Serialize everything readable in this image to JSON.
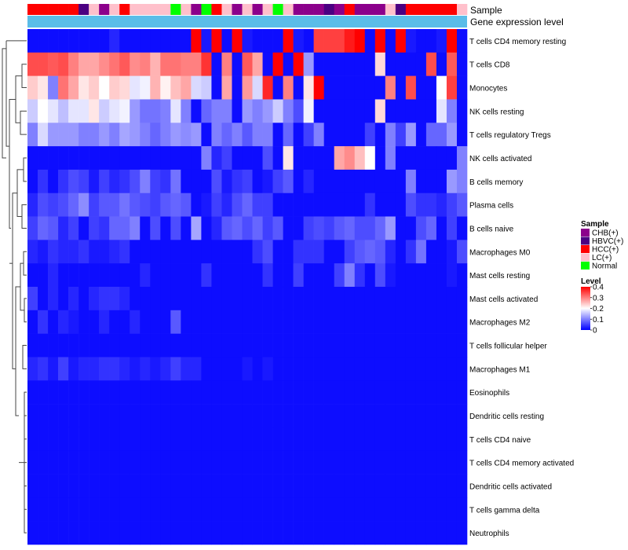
{
  "chart_data": {
    "type": "heatmap",
    "title": "",
    "annotation_labels": [
      "Sample",
      "Gene expression level"
    ],
    "sample_groups": [
      "HCC(+)",
      "HCC(+)",
      "HCC(+)",
      "HCC(+)",
      "HCC(+)",
      "HBVC(+)",
      "LC(+)",
      "CHB(+)",
      "LC(+)",
      "HCC(+)",
      "LC(+)",
      "LC(+)",
      "LC(+)",
      "LC(+)",
      "Normal",
      "LC(+)",
      "CHB(+)",
      "Normal",
      "HCC(+)",
      "LC(+)",
      "CHB(+)",
      "LC(+)",
      "CHB(+)",
      "LC(+)",
      "Normal",
      "LC(+)",
      "CHB(+)",
      "CHB(+)",
      "CHB(+)",
      "HBVC(+)",
      "CHB(+)",
      "HCC(+)",
      "CHB(+)",
      "CHB(+)",
      "CHB(+)",
      "LC(+)",
      "HBVC(+)",
      "HCC(+)",
      "HCC(+)",
      "HCC(+)",
      "HCC(+)",
      "HCC(+)",
      "LC(+)"
    ],
    "rows": [
      "T cells CD4 memory resting",
      "T cells CD8",
      "Monocytes",
      "NK cells resting",
      "T cells regulatory  Tregs",
      "NK cells activated",
      "B cells memory",
      "Plasma cells",
      "B cells naive",
      "Macrophages M0",
      "Mast cells resting",
      "Mast cells activated",
      "Macrophages M2",
      "T cells follicular helper",
      "Macrophages M1",
      "Eosinophils",
      "Dendritic cells resting",
      "T cells CD4 naive",
      "T cells CD4 memory activated",
      "Dendritic cells activated",
      "T cells gamma delta",
      "Neutrophils"
    ],
    "values": [
      [
        0.01,
        0.01,
        0.01,
        0.01,
        0.01,
        0.01,
        0.01,
        0.01,
        0.03,
        0.01,
        0.01,
        0.01,
        0.01,
        0.01,
        0.01,
        0.01,
        0.4,
        0.02,
        0.4,
        0.01,
        0.4,
        0.02,
        0.01,
        0.01,
        0.01,
        0.4,
        0.02,
        0.01,
        0.35,
        0.35,
        0.35,
        0.38,
        0.4,
        0.01,
        0.4,
        0.01,
        0.4,
        0.02,
        0.01,
        0.01,
        0.02,
        0.4,
        0.01
      ],
      [
        0.34,
        0.34,
        0.33,
        0.34,
        0.3,
        0.27,
        0.27,
        0.29,
        0.31,
        0.33,
        0.29,
        0.3,
        0.26,
        0.31,
        0.31,
        0.3,
        0.3,
        0.36,
        0.01,
        0.3,
        0.01,
        0.33,
        0.27,
        0.01,
        0.4,
        0.01,
        0.4,
        0.12,
        0.01,
        0.01,
        0.01,
        0.01,
        0.01,
        0.01,
        0.23,
        0.01,
        0.01,
        0.01,
        0.01,
        0.34,
        0.01,
        0.33,
        0.01
      ],
      [
        0.24,
        0.22,
        0.1,
        0.31,
        0.27,
        0.22,
        0.24,
        0.2,
        0.24,
        0.23,
        0.18,
        0.19,
        0.26,
        0.21,
        0.25,
        0.27,
        0.17,
        0.16,
        0.01,
        0.27,
        0.01,
        0.28,
        0.17,
        0.37,
        0.01,
        0.3,
        0.01,
        0.22,
        0.4,
        0.01,
        0.01,
        0.01,
        0.01,
        0.01,
        0.01,
        0.3,
        0.01,
        0.34,
        0.01,
        0.01,
        0.2,
        0.35,
        0.01
      ],
      [
        0.16,
        0.2,
        0.18,
        0.15,
        0.18,
        0.18,
        0.22,
        0.16,
        0.18,
        0.19,
        0.12,
        0.09,
        0.09,
        0.1,
        0.18,
        0.1,
        0.01,
        0.08,
        0.1,
        0.1,
        0.01,
        0.12,
        0.1,
        0.12,
        0.16,
        0.1,
        0.06,
        0.19,
        0.01,
        0.01,
        0.01,
        0.01,
        0.01,
        0.01,
        0.23,
        0.01,
        0.01,
        0.01,
        0.01,
        0.01,
        0.18,
        0.1,
        0.01
      ],
      [
        0.1,
        0.17,
        0.12,
        0.12,
        0.12,
        0.1,
        0.1,
        0.12,
        0.1,
        0.13,
        0.12,
        0.1,
        0.08,
        0.1,
        0.12,
        0.11,
        0.12,
        0.01,
        0.1,
        0.08,
        0.1,
        0.07,
        0.1,
        0.1,
        0.01,
        0.08,
        0.01,
        0.05,
        0.1,
        0.01,
        0.01,
        0.01,
        0.01,
        0.05,
        0.01,
        0.1,
        0.05,
        0.12,
        0.01,
        0.08,
        0.08,
        0.12,
        0.01
      ],
      [
        0.01,
        0.01,
        0.01,
        0.01,
        0.01,
        0.01,
        0.01,
        0.01,
        0.01,
        0.01,
        0.01,
        0.01,
        0.01,
        0.01,
        0.01,
        0.01,
        0.01,
        0.1,
        0.03,
        0.05,
        0.01,
        0.01,
        0.01,
        0.06,
        0.01,
        0.22,
        0.01,
        0.01,
        0.01,
        0.01,
        0.27,
        0.29,
        0.25,
        0.2,
        0.01,
        0.1,
        0.01,
        0.01,
        0.01,
        0.01,
        0.01,
        0.01,
        0.1
      ],
      [
        0.01,
        0.04,
        0.01,
        0.04,
        0.06,
        0.05,
        0.02,
        0.05,
        0.03,
        0.04,
        0.06,
        0.1,
        0.05,
        0.04,
        0.09,
        0.01,
        0.01,
        0.01,
        0.06,
        0.02,
        0.04,
        0.05,
        0.01,
        0.02,
        0.05,
        0.07,
        0.01,
        0.03,
        0.01,
        0.01,
        0.01,
        0.01,
        0.01,
        0.01,
        0.01,
        0.01,
        0.01,
        0.1,
        0.01,
        0.01,
        0.01,
        0.12,
        0.1
      ],
      [
        0.03,
        0.06,
        0.05,
        0.06,
        0.08,
        0.11,
        0.05,
        0.07,
        0.07,
        0.09,
        0.07,
        0.06,
        0.05,
        0.07,
        0.08,
        0.07,
        0.01,
        0.02,
        0.05,
        0.03,
        0.06,
        0.08,
        0.05,
        0.05,
        0.01,
        0.01,
        0.01,
        0.01,
        0.01,
        0.01,
        0.01,
        0.01,
        0.01,
        0.04,
        0.01,
        0.01,
        0.01,
        0.06,
        0.04,
        0.04,
        0.03,
        0.05,
        0.07
      ],
      [
        0.05,
        0.08,
        0.07,
        0.03,
        0.05,
        0.01,
        0.05,
        0.04,
        0.08,
        0.08,
        0.1,
        0.01,
        0.06,
        0.01,
        0.06,
        0.01,
        0.13,
        0.01,
        0.03,
        0.07,
        0.08,
        0.06,
        0.08,
        0.05,
        0.07,
        0.01,
        0.01,
        0.05,
        0.06,
        0.05,
        0.07,
        0.08,
        0.06,
        0.06,
        0.08,
        0.12,
        0.01,
        0.01,
        0.06,
        0.08,
        0.01,
        0.05,
        0.01
      ],
      [
        0.03,
        0.02,
        0.04,
        0.03,
        0.03,
        0.04,
        0.02,
        0.02,
        0.03,
        0.04,
        0.01,
        0.01,
        0.01,
        0.01,
        0.01,
        0.01,
        0.01,
        0.01,
        0.01,
        0.01,
        0.01,
        0.01,
        0.04,
        0.06,
        0.01,
        0.01,
        0.04,
        0.04,
        0.04,
        0.01,
        0.01,
        0.05,
        0.07,
        0.08,
        0.07,
        0.03,
        0.01,
        0.04,
        0.09,
        0.01,
        0.01,
        0.02,
        0.06
      ],
      [
        0.01,
        0.01,
        0.03,
        0.01,
        0.01,
        0.01,
        0.01,
        0.01,
        0.01,
        0.01,
        0.01,
        0.03,
        0.01,
        0.01,
        0.01,
        0.01,
        0.01,
        0.04,
        0.01,
        0.01,
        0.01,
        0.01,
        0.01,
        0.04,
        0.01,
        0.01,
        0.05,
        0.01,
        0.01,
        0.01,
        0.05,
        0.1,
        0.04,
        0.01,
        0.06,
        0.02,
        0.01,
        0.01,
        0.01,
        0.01,
        0.01,
        0.02,
        0.01
      ],
      [
        0.05,
        0.01,
        0.03,
        0.01,
        0.03,
        0.01,
        0.03,
        0.04,
        0.04,
        0.03,
        0.01,
        0.01,
        0.01,
        0.01,
        0.01,
        0.01,
        0.01,
        0.01,
        0.01,
        0.01,
        0.01,
        0.01,
        0.01,
        0.01,
        0.01,
        0.01,
        0.01,
        0.01,
        0.01,
        0.01,
        0.01,
        0.01,
        0.01,
        0.01,
        0.01,
        0.01,
        0.01,
        0.01,
        0.01,
        0.01,
        0.01,
        0.01,
        0.01
      ],
      [
        0.01,
        0.04,
        0.01,
        0.03,
        0.02,
        0.01,
        0.01,
        0.03,
        0.01,
        0.01,
        0.03,
        0.01,
        0.01,
        0.01,
        0.07,
        0.01,
        0.01,
        0.01,
        0.01,
        0.01,
        0.01,
        0.01,
        0.01,
        0.01,
        0.01,
        0.01,
        0.01,
        0.01,
        0.01,
        0.01,
        0.01,
        0.01,
        0.01,
        0.01,
        0.01,
        0.01,
        0.01,
        0.01,
        0.01,
        0.01,
        0.01,
        0.01,
        0.01
      ],
      [
        0.01,
        0.01,
        0.01,
        0.01,
        0.01,
        0.01,
        0.01,
        0.01,
        0.01,
        0.01,
        0.01,
        0.01,
        0.01,
        0.01,
        0.01,
        0.01,
        0.01,
        0.01,
        0.01,
        0.01,
        0.01,
        0.01,
        0.01,
        0.01,
        0.01,
        0.01,
        0.01,
        0.01,
        0.01,
        0.01,
        0.01,
        0.01,
        0.01,
        0.01,
        0.01,
        0.01,
        0.01,
        0.01,
        0.01,
        0.01,
        0.01,
        0.01,
        0.01
      ],
      [
        0.03,
        0.04,
        0.02,
        0.05,
        0.02,
        0.03,
        0.03,
        0.04,
        0.04,
        0.03,
        0.02,
        0.03,
        0.02,
        0.03,
        0.05,
        0.03,
        0.03,
        0.01,
        0.01,
        0.01,
        0.01,
        0.02,
        0.01,
        0.02,
        0.01,
        0.01,
        0.01,
        0.01,
        0.01,
        0.01,
        0.01,
        0.01,
        0.01,
        0.01,
        0.01,
        0.01,
        0.01,
        0.01,
        0.01,
        0.01,
        0.01,
        0.01,
        0.01
      ],
      [
        0.01,
        0.01,
        0.01,
        0.01,
        0.01,
        0.01,
        0.01,
        0.01,
        0.01,
        0.01,
        0.01,
        0.01,
        0.01,
        0.01,
        0.01,
        0.01,
        0.01,
        0.01,
        0.01,
        0.01,
        0.01,
        0.01,
        0.01,
        0.01,
        0.01,
        0.01,
        0.01,
        0.01,
        0.01,
        0.01,
        0.01,
        0.01,
        0.01,
        0.01,
        0.01,
        0.01,
        0.01,
        0.01,
        0.01,
        0.01,
        0.01,
        0.01,
        0.01
      ],
      [
        0.01,
        0.01,
        0.01,
        0.01,
        0.01,
        0.01,
        0.01,
        0.01,
        0.01,
        0.01,
        0.01,
        0.01,
        0.01,
        0.01,
        0.01,
        0.01,
        0.01,
        0.01,
        0.01,
        0.01,
        0.01,
        0.01,
        0.01,
        0.01,
        0.01,
        0.01,
        0.01,
        0.01,
        0.01,
        0.01,
        0.01,
        0.01,
        0.01,
        0.01,
        0.01,
        0.01,
        0.01,
        0.01,
        0.01,
        0.01,
        0.01,
        0.01,
        0.01
      ],
      [
        0.01,
        0.01,
        0.01,
        0.01,
        0.01,
        0.01,
        0.01,
        0.01,
        0.01,
        0.01,
        0.01,
        0.01,
        0.01,
        0.01,
        0.01,
        0.01,
        0.01,
        0.01,
        0.01,
        0.01,
        0.01,
        0.01,
        0.01,
        0.01,
        0.01,
        0.01,
        0.01,
        0.01,
        0.01,
        0.01,
        0.01,
        0.01,
        0.01,
        0.01,
        0.01,
        0.01,
        0.01,
        0.01,
        0.01,
        0.01,
        0.01,
        0.01,
        0.01
      ],
      [
        0.01,
        0.01,
        0.01,
        0.01,
        0.01,
        0.01,
        0.01,
        0.01,
        0.01,
        0.01,
        0.01,
        0.01,
        0.01,
        0.01,
        0.01,
        0.01,
        0.01,
        0.01,
        0.01,
        0.01,
        0.01,
        0.01,
        0.01,
        0.01,
        0.01,
        0.01,
        0.01,
        0.01,
        0.01,
        0.01,
        0.01,
        0.01,
        0.01,
        0.01,
        0.01,
        0.01,
        0.01,
        0.01,
        0.01,
        0.01,
        0.01,
        0.01,
        0.01
      ],
      [
        0.01,
        0.01,
        0.01,
        0.01,
        0.01,
        0.01,
        0.01,
        0.01,
        0.01,
        0.01,
        0.01,
        0.01,
        0.01,
        0.01,
        0.01,
        0.01,
        0.01,
        0.01,
        0.01,
        0.01,
        0.01,
        0.01,
        0.01,
        0.01,
        0.01,
        0.01,
        0.01,
        0.01,
        0.01,
        0.01,
        0.01,
        0.01,
        0.01,
        0.01,
        0.01,
        0.01,
        0.01,
        0.01,
        0.01,
        0.01,
        0.01,
        0.01,
        0.01
      ],
      [
        0.01,
        0.01,
        0.01,
        0.01,
        0.01,
        0.01,
        0.01,
        0.01,
        0.01,
        0.01,
        0.01,
        0.01,
        0.01,
        0.01,
        0.01,
        0.01,
        0.01,
        0.01,
        0.01,
        0.01,
        0.01,
        0.01,
        0.01,
        0.01,
        0.01,
        0.01,
        0.01,
        0.01,
        0.01,
        0.01,
        0.01,
        0.01,
        0.01,
        0.01,
        0.01,
        0.01,
        0.01,
        0.01,
        0.01,
        0.01,
        0.01,
        0.01,
        0.01
      ],
      [
        0.01,
        0.01,
        0.01,
        0.01,
        0.01,
        0.01,
        0.01,
        0.01,
        0.01,
        0.01,
        0.01,
        0.01,
        0.01,
        0.01,
        0.01,
        0.01,
        0.01,
        0.01,
        0.01,
        0.01,
        0.01,
        0.01,
        0.01,
        0.01,
        0.01,
        0.01,
        0.01,
        0.01,
        0.01,
        0.01,
        0.01,
        0.01,
        0.01,
        0.01,
        0.01,
        0.01,
        0.01,
        0.01,
        0.01,
        0.01,
        0.01,
        0.01,
        0.01
      ]
    ],
    "color_range": [
      0,
      0.4
    ],
    "colors": {
      "low": "#0000ff",
      "mid": "#ffffff",
      "high": "#ff0000",
      "expression_band": "#5bbde8"
    },
    "legend": {
      "position": "right",
      "sample_title": "Sample",
      "sample_items": [
        {
          "label": "CHB(+)",
          "color": "#8b008b"
        },
        {
          "label": "HBVC(+)",
          "color": "#4b0082"
        },
        {
          "label": "HCC(+)",
          "color": "#ff0000"
        },
        {
          "label": "LC(+)",
          "color": "#ffc0cb"
        },
        {
          "label": "Normal",
          "color": "#00ff00"
        }
      ],
      "level_title": "Level",
      "level_ticks": [
        "0.4",
        "0.3",
        "0.2",
        "0.1",
        "0"
      ],
      "level_tick_values": [
        0.4,
        0.3,
        0.2,
        0.1,
        0
      ]
    }
  }
}
